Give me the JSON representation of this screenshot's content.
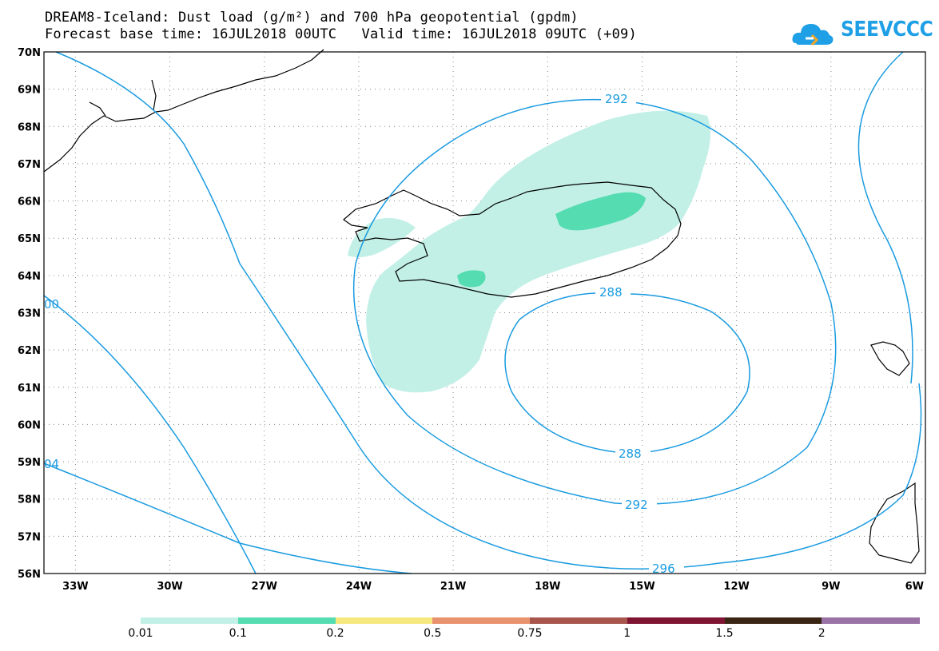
{
  "header": {
    "title_line1": "DREAM8-Iceland: Dust load (g/m²) and 700 hPa geopotential (gpdm)",
    "title_line2": "Forecast base time: 16JUL2018 00UTC   Valid time: 16JUL2018 09UTC (+09)"
  },
  "logo": {
    "text": "SEEVCCC",
    "icon": "cloud-icon"
  },
  "map": {
    "lat_labels": [
      "70N",
      "69N",
      "68N",
      "67N",
      "66N",
      "65N",
      "64N",
      "63N",
      "62N",
      "61N",
      "60N",
      "59N",
      "58N",
      "57N",
      "56N"
    ],
    "lon_labels": [
      "33W",
      "30W",
      "27W",
      "24W",
      "21W",
      "18W",
      "15W",
      "12W",
      "9W",
      "6W"
    ],
    "contour_labels": [
      "292",
      "288",
      "288",
      "292",
      "296",
      "00",
      "04"
    ],
    "contour_color": "#1a9be0",
    "coast_color": "#000000"
  },
  "colorbar": {
    "colors": [
      "#c2f0e6",
      "#55dcb0",
      "#f6e87e",
      "#e8926e",
      "#a8564c",
      "#7e1432",
      "#3a2414",
      "#9a72a6"
    ],
    "labels": [
      "0.01",
      "0.1",
      "0.2",
      "0.5",
      "0.75",
      "1",
      "1.5",
      "2"
    ]
  }
}
